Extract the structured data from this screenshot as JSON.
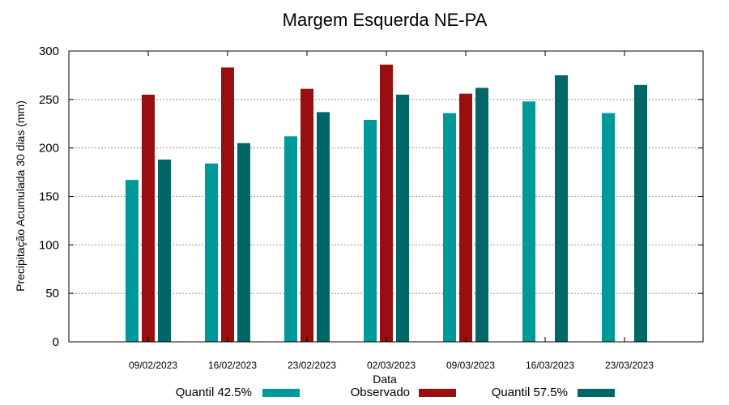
{
  "chart_data": {
    "type": "bar",
    "title": "Margem Esquerda NE-PA",
    "xlabel": "Data",
    "ylabel": "Precipitação Acumulada 30 dias (mm)",
    "ylim": [
      0,
      300
    ],
    "yticks": [
      0,
      50,
      100,
      150,
      200,
      250,
      300
    ],
    "grid": true,
    "legend_position": "bottom",
    "categories": [
      "09/02/2023",
      "16/02/2023",
      "23/02/2023",
      "02/03/2023",
      "09/03/2023",
      "16/03/2023",
      "23/03/2023"
    ],
    "series": [
      {
        "name": "Quantil 42.5%",
        "color": "#009999",
        "values": [
          167,
          184,
          212,
          229,
          236,
          248,
          236
        ]
      },
      {
        "name": "Observado",
        "color": "#990f0f",
        "values": [
          255,
          283,
          261,
          286,
          256,
          null,
          null
        ]
      },
      {
        "name": "Quantil 57.5%",
        "color": "#006666",
        "values": [
          188,
          205,
          237,
          255,
          262,
          275,
          265
        ]
      }
    ]
  }
}
